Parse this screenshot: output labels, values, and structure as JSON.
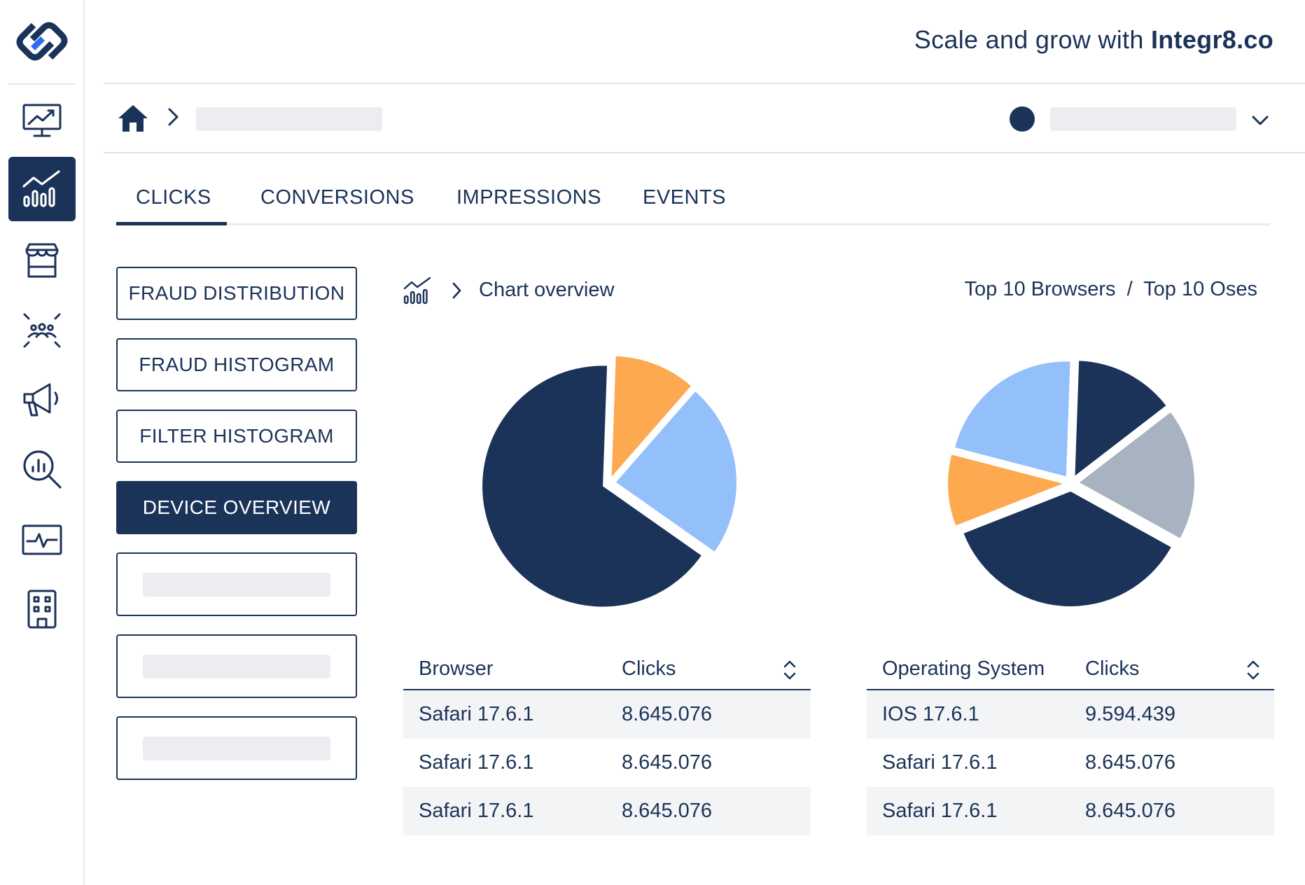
{
  "header": {
    "tagline_prefix": "Scale and grow with",
    "tagline_brand": "Integr8.co"
  },
  "sidebar": {
    "items": [
      {
        "icon": "presentation-chart-icon",
        "active": false
      },
      {
        "icon": "analytics-chart-icon",
        "active": true
      },
      {
        "icon": "storefront-icon",
        "active": false
      },
      {
        "icon": "audience-icon",
        "active": false
      },
      {
        "icon": "megaphone-icon",
        "active": false
      },
      {
        "icon": "search-analytics-icon",
        "active": false
      },
      {
        "icon": "activity-monitor-icon",
        "active": false
      },
      {
        "icon": "building-icon",
        "active": false
      }
    ]
  },
  "tabs": [
    {
      "label": "CLICKS",
      "active": true
    },
    {
      "label": "CONVERSIONS",
      "active": false
    },
    {
      "label": "IMPRESSIONS",
      "active": false
    },
    {
      "label": "EVENTS",
      "active": false
    }
  ],
  "side_buttons": [
    {
      "label": "FRAUD DISTRIBUTION",
      "active": false
    },
    {
      "label": "FRAUD HISTOGRAM",
      "active": false
    },
    {
      "label": "FILTER HISTOGRAM",
      "active": false
    },
    {
      "label": "DEVICE OVERVIEW",
      "active": true
    }
  ],
  "chart_header": {
    "crumb": "Chart overview",
    "link_browsers": "Top 10 Browsers",
    "separator": "/",
    "link_oses": "Top 10 Oses"
  },
  "colors": {
    "navy": "#1b3359",
    "orange": "#fda94f",
    "light_blue": "#93bffb",
    "gray": "#a8b3c1"
  },
  "chart_data": [
    {
      "type": "pie",
      "slices": [
        {
          "value": 63.5,
          "color": "#1b3359"
        },
        {
          "value": 10.5,
          "color": "#fda94f"
        },
        {
          "value": 22.5,
          "color": "#93bffb"
        }
      ]
    },
    {
      "type": "pie",
      "slices": [
        {
          "value": 14,
          "color": "#1b3359"
        },
        {
          "value": 18.5,
          "color": "#a8b3c1"
        },
        {
          "value": 36,
          "color": "#1b3359"
        },
        {
          "value": 10,
          "color": "#fda94f"
        },
        {
          "value": 21.5,
          "color": "#93bffb"
        }
      ]
    }
  ],
  "browser_table": {
    "col1": "Browser",
    "col2": "Clicks",
    "rows": [
      {
        "name": "Safari 17.6.1",
        "clicks": "8.645.076"
      },
      {
        "name": "Safari 17.6.1",
        "clicks": "8.645.076"
      },
      {
        "name": "Safari 17.6.1",
        "clicks": "8.645.076"
      }
    ]
  },
  "os_table": {
    "col1": "Operating System",
    "col2": "Clicks",
    "rows": [
      {
        "name": "IOS 17.6.1",
        "clicks": "9.594.439"
      },
      {
        "name": "Safari 17.6.1",
        "clicks": "8.645.076"
      },
      {
        "name": "Safari 17.6.1",
        "clicks": "8.645.076"
      }
    ]
  }
}
